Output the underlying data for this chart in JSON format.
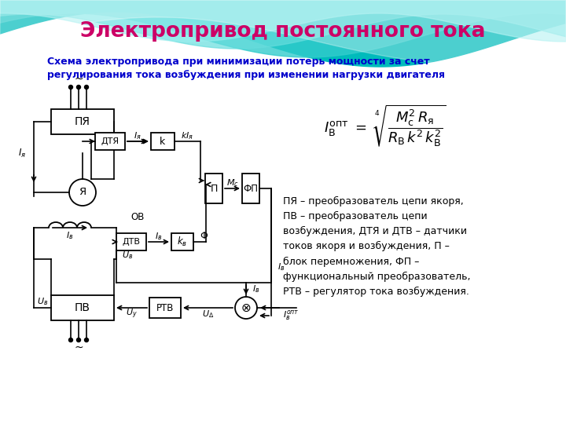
{
  "title": "Электропривод постоянного тока",
  "subtitle": "Схема электропривода при минимизации потерь мощности за счет\nрегулирования тока возбуждения при изменении нагрузки двигателя",
  "title_color": "#CC0066",
  "subtitle_color": "#0000CC",
  "description": "ПЯ – преобразователь цепи якоря,\nПВ – преобразователь цепи\nвозбуждения, ДТЯ и ДТВ – датчики\nтоков якоря и возбуждения, П –\nблок перемножения, ФП –\nфункциональный преобразователь,\nРТВ – регулятор тока возбуждения.",
  "desc_color": "#000000",
  "wave_colors": [
    "#00AAAA",
    "#22CCCC",
    "#55DDDD",
    "#88EEEE"
  ],
  "bg_color": "#FFFFFF"
}
